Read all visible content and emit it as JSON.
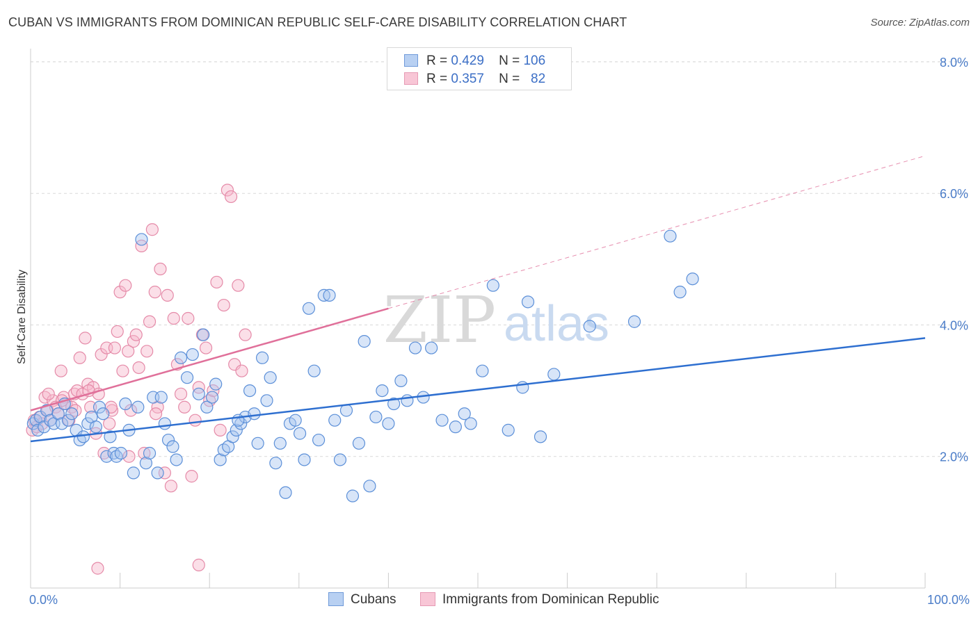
{
  "title": "CUBAN VS IMMIGRANTS FROM DOMINICAN REPUBLIC SELF-CARE DISABILITY CORRELATION CHART",
  "source": "Source: ZipAtlas.com",
  "watermark": {
    "zip": "ZIP",
    "atlas": "atlas"
  },
  "legend": {
    "rows": [
      {
        "r_label": "R =",
        "r_value": "0.429",
        "n_label": "N =",
        "n_value": "106"
      },
      {
        "r_label": "R =",
        "r_value": "0.357",
        "n_label": "N =",
        "n_value": "82"
      }
    ]
  },
  "bottom_legend": {
    "cubans": "Cubans",
    "dominican": "Immigrants from Dominican Republic"
  },
  "colors": {
    "cubans_fill": "#a8c6f0",
    "cubans_stroke": "#5b8fd8",
    "cubans_line": "#2e6fd0",
    "dominican_fill": "#f7b8cc",
    "dominican_stroke": "#e58aa8",
    "dominican_line": "#e0709a",
    "tick_text": "#4a7cc8",
    "grid": "#d9d9d9"
  },
  "chart_data": {
    "type": "scatter",
    "title": "CUBAN VS IMMIGRANTS FROM DOMINICAN REPUBLIC SELF-CARE DISABILITY CORRELATION CHART",
    "xlabel": "",
    "ylabel": "Self-Care Disability",
    "x_tick_labels": [
      "0.0%",
      "100.0%"
    ],
    "y_tick_labels": [
      "2.0%",
      "4.0%",
      "6.0%",
      "8.0%"
    ],
    "y_ticks": [
      2,
      4,
      6,
      8
    ],
    "xlim": [
      0,
      100
    ],
    "ylim": [
      0,
      8.2
    ],
    "grid": "horizontal dashed",
    "series": [
      {
        "name": "Cubans",
        "r": 0.429,
        "n": 106,
        "trend": {
          "x": [
            0,
            100
          ],
          "y": [
            2.23,
            3.8
          ],
          "style": "solid"
        },
        "points": [
          [
            0.3,
            2.5
          ],
          [
            0.6,
            2.55
          ],
          [
            0.8,
            2.4
          ],
          [
            1.1,
            2.6
          ],
          [
            1.5,
            2.45
          ],
          [
            1.8,
            2.7
          ],
          [
            2.2,
            2.55
          ],
          [
            2.6,
            2.5
          ],
          [
            3.1,
            2.65
          ],
          [
            3.5,
            2.5
          ],
          [
            3.8,
            2.8
          ],
          [
            4.2,
            2.55
          ],
          [
            4.6,
            2.65
          ],
          [
            5.1,
            2.4
          ],
          [
            5.5,
            2.25
          ],
          [
            5.9,
            2.3
          ],
          [
            6.4,
            2.5
          ],
          [
            6.8,
            2.6
          ],
          [
            7.3,
            2.45
          ],
          [
            7.7,
            2.75
          ],
          [
            8.1,
            2.65
          ],
          [
            8.5,
            2.0
          ],
          [
            8.9,
            2.3
          ],
          [
            9.3,
            2.05
          ],
          [
            9.6,
            2.0
          ],
          [
            10.1,
            2.05
          ],
          [
            10.6,
            2.8
          ],
          [
            11.0,
            2.4
          ],
          [
            11.5,
            1.75
          ],
          [
            12.0,
            2.75
          ],
          [
            12.4,
            5.3
          ],
          [
            12.9,
            1.9
          ],
          [
            13.3,
            2.05
          ],
          [
            13.7,
            2.9
          ],
          [
            14.2,
            1.75
          ],
          [
            14.6,
            2.9
          ],
          [
            15.0,
            2.5
          ],
          [
            15.4,
            2.25
          ],
          [
            15.9,
            2.15
          ],
          [
            16.3,
            1.95
          ],
          [
            16.8,
            3.5
          ],
          [
            17.5,
            3.2
          ],
          [
            18.1,
            3.55
          ],
          [
            18.8,
            2.95
          ],
          [
            19.3,
            3.85
          ],
          [
            19.7,
            2.75
          ],
          [
            20.3,
            2.9
          ],
          [
            20.7,
            3.1
          ],
          [
            21.2,
            1.95
          ],
          [
            21.6,
            2.1
          ],
          [
            22.1,
            2.15
          ],
          [
            22.6,
            2.3
          ],
          [
            23.0,
            2.4
          ],
          [
            23.5,
            2.5
          ],
          [
            24.0,
            2.6
          ],
          [
            24.5,
            3.0
          ],
          [
            25.0,
            2.65
          ],
          [
            25.4,
            2.2
          ],
          [
            25.9,
            3.5
          ],
          [
            26.4,
            2.85
          ],
          [
            26.8,
            3.2
          ],
          [
            27.4,
            1.9
          ],
          [
            27.9,
            2.2
          ],
          [
            28.5,
            1.45
          ],
          [
            29.0,
            2.5
          ],
          [
            29.6,
            2.55
          ],
          [
            30.1,
            2.35
          ],
          [
            30.6,
            1.95
          ],
          [
            31.1,
            4.25
          ],
          [
            31.7,
            3.3
          ],
          [
            32.2,
            2.25
          ],
          [
            32.8,
            4.45
          ],
          [
            33.4,
            4.45
          ],
          [
            34.0,
            2.55
          ],
          [
            34.6,
            1.95
          ],
          [
            35.3,
            2.7
          ],
          [
            36.0,
            1.4
          ],
          [
            36.7,
            2.2
          ],
          [
            37.3,
            3.75
          ],
          [
            37.9,
            1.55
          ],
          [
            38.6,
            2.6
          ],
          [
            39.3,
            3.0
          ],
          [
            40.0,
            2.5
          ],
          [
            40.6,
            2.8
          ],
          [
            41.4,
            3.15
          ],
          [
            42.1,
            2.85
          ],
          [
            43.0,
            3.65
          ],
          [
            43.9,
            2.9
          ],
          [
            44.8,
            3.65
          ],
          [
            46.0,
            2.55
          ],
          [
            47.5,
            2.45
          ],
          [
            48.5,
            2.65
          ],
          [
            49.2,
            2.5
          ],
          [
            50.5,
            3.3
          ],
          [
            51.7,
            4.6
          ],
          [
            53.4,
            2.4
          ],
          [
            55.0,
            3.05
          ],
          [
            55.6,
            4.35
          ],
          [
            57.0,
            2.3
          ],
          [
            58.5,
            3.25
          ],
          [
            62.5,
            3.98
          ],
          [
            67.5,
            4.05
          ],
          [
            71.5,
            5.35
          ],
          [
            72.6,
            4.5
          ],
          [
            74.0,
            4.7
          ],
          [
            23.2,
            2.55
          ]
        ]
      },
      {
        "name": "Immigrants from Dominican Republic",
        "r": 0.357,
        "n": 82,
        "trend": {
          "x": [
            0,
            40
          ],
          "y": [
            2.7,
            4.25
          ],
          "style": "solid",
          "extension": {
            "x": [
              40,
              100
            ],
            "y": [
              4.25,
              6.57
            ],
            "style": "dashed"
          }
        },
        "points": [
          [
            0.2,
            2.4
          ],
          [
            0.4,
            2.55
          ],
          [
            0.7,
            2.45
          ],
          [
            1.0,
            2.6
          ],
          [
            1.3,
            2.5
          ],
          [
            1.6,
            2.9
          ],
          [
            1.9,
            2.7
          ],
          [
            2.2,
            2.55
          ],
          [
            2.5,
            2.85
          ],
          [
            2.8,
            2.75
          ],
          [
            3.1,
            2.65
          ],
          [
            3.4,
            3.3
          ],
          [
            3.7,
            2.9
          ],
          [
            4.0,
            2.8
          ],
          [
            4.3,
            2.55
          ],
          [
            4.6,
            2.75
          ],
          [
            4.9,
            2.95
          ],
          [
            5.2,
            3.0
          ],
          [
            5.5,
            3.5
          ],
          [
            5.8,
            2.95
          ],
          [
            6.1,
            3.8
          ],
          [
            6.4,
            3.1
          ],
          [
            6.7,
            2.75
          ],
          [
            7.0,
            3.05
          ],
          [
            7.3,
            2.35
          ],
          [
            7.6,
            2.95
          ],
          [
            7.9,
            3.55
          ],
          [
            8.2,
            2.05
          ],
          [
            8.5,
            3.65
          ],
          [
            8.8,
            2.5
          ],
          [
            9.1,
            2.7
          ],
          [
            9.4,
            3.65
          ],
          [
            9.7,
            3.9
          ],
          [
            10.0,
            4.5
          ],
          [
            10.3,
            3.3
          ],
          [
            10.6,
            4.6
          ],
          [
            10.9,
            3.6
          ],
          [
            11.2,
            2.7
          ],
          [
            11.5,
            3.75
          ],
          [
            11.8,
            3.85
          ],
          [
            12.1,
            3.35
          ],
          [
            12.4,
            5.2
          ],
          [
            12.7,
            2.05
          ],
          [
            13.0,
            3.6
          ],
          [
            13.3,
            4.05
          ],
          [
            13.6,
            5.45
          ],
          [
            13.9,
            4.5
          ],
          [
            14.2,
            2.75
          ],
          [
            14.5,
            4.85
          ],
          [
            15.0,
            1.75
          ],
          [
            15.3,
            4.45
          ],
          [
            15.7,
            1.55
          ],
          [
            16.0,
            4.1
          ],
          [
            16.4,
            3.4
          ],
          [
            16.8,
            2.95
          ],
          [
            17.2,
            2.75
          ],
          [
            17.6,
            4.1
          ],
          [
            18.0,
            1.7
          ],
          [
            18.4,
            2.55
          ],
          [
            18.8,
            3.05
          ],
          [
            19.2,
            3.85
          ],
          [
            19.6,
            3.65
          ],
          [
            20.0,
            2.85
          ],
          [
            20.4,
            3.0
          ],
          [
            20.8,
            4.65
          ],
          [
            21.2,
            2.4
          ],
          [
            21.6,
            4.3
          ],
          [
            22.0,
            6.05
          ],
          [
            22.4,
            5.95
          ],
          [
            22.8,
            3.4
          ],
          [
            23.2,
            4.6
          ],
          [
            23.6,
            3.3
          ],
          [
            24.0,
            3.85
          ],
          [
            7.5,
            0.3
          ],
          [
            18.8,
            0.35
          ],
          [
            2.0,
            2.95
          ],
          [
            3.5,
            2.85
          ],
          [
            5.0,
            2.7
          ],
          [
            6.5,
            3.0
          ],
          [
            9.0,
            2.75
          ],
          [
            11.0,
            2.0
          ],
          [
            14.0,
            2.65
          ]
        ]
      }
    ]
  }
}
